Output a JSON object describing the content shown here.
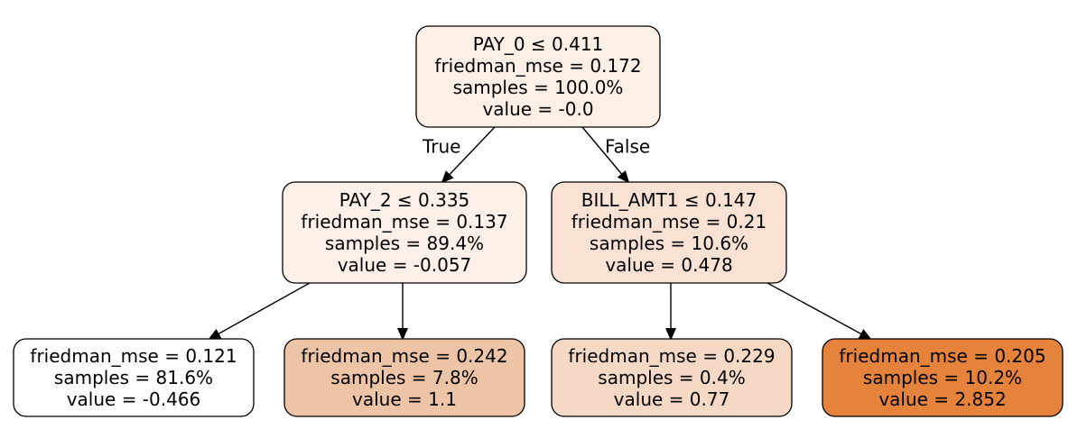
{
  "tree": {
    "nodes": [
      {
        "id": "root",
        "lines": [
          "PAY_0 ≤ 0.411",
          "friedman_mse = 0.172",
          "samples = 100.0%",
          "value = -0.0"
        ],
        "fill": "#fcefe6"
      },
      {
        "id": "left",
        "lines": [
          "PAY_2 ≤ 0.335",
          "friedman_mse = 0.137",
          "samples = 89.4%",
          "value = -0.057"
        ],
        "fill": "#fdf0e8"
      },
      {
        "id": "right",
        "lines": [
          "BILL_AMT1 ≤ 0.147",
          "friedman_mse = 0.21",
          "samples = 10.6%",
          "value = 0.478"
        ],
        "fill": "#f9e2d3"
      },
      {
        "id": "leaf1",
        "lines": [
          "friedman_mse = 0.121",
          "samples = 81.6%",
          "value = -0.466"
        ],
        "fill": "#ffffff"
      },
      {
        "id": "leaf2",
        "lines": [
          "friedman_mse = 0.242",
          "samples = 7.8%",
          "value = 1.1"
        ],
        "fill": "#eec4a7"
      },
      {
        "id": "leaf3",
        "lines": [
          "friedman_mse = 0.229",
          "samples = 0.4%",
          "value = 0.77"
        ],
        "fill": "#f6d9c4"
      },
      {
        "id": "leaf4",
        "lines": [
          "friedman_mse = 0.205",
          "samples = 10.2%",
          "value = 2.852"
        ],
        "fill": "#e5823b"
      }
    ],
    "edges": [
      {
        "from": "root",
        "to": "left",
        "label": "True"
      },
      {
        "from": "root",
        "to": "right",
        "label": "False"
      },
      {
        "from": "left",
        "to": "leaf1",
        "label": ""
      },
      {
        "from": "left",
        "to": "leaf2",
        "label": ""
      },
      {
        "from": "right",
        "to": "leaf3",
        "label": ""
      },
      {
        "from": "right",
        "to": "leaf4",
        "label": ""
      }
    ]
  }
}
